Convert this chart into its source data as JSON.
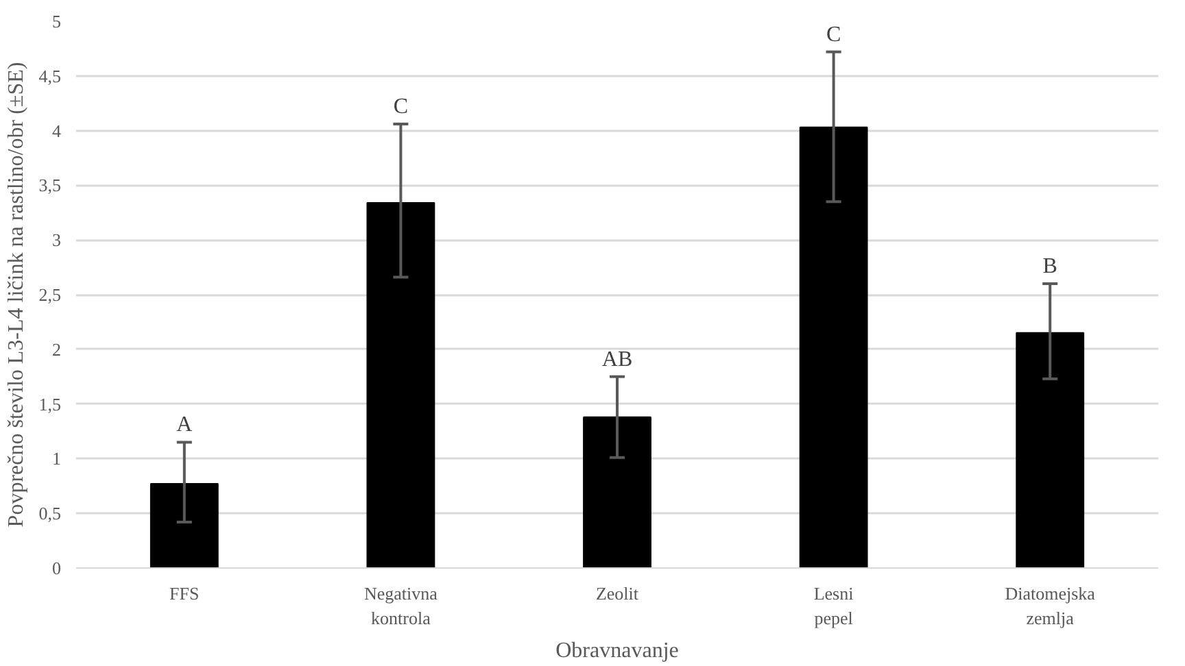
{
  "chart_data": {
    "type": "bar",
    "xlabel": "Obravnavanje",
    "ylabel": "Povprečno število L3-L4 ličink na rastlino/obr (±SE)",
    "categories": [
      "FFS",
      "Negativna kontrola",
      "Zeolit",
      "Lesni pepel",
      "Diatomejska zemlja"
    ],
    "values": [
      0.77,
      3.34,
      1.38,
      4.03,
      2.15
    ],
    "errors": [
      [
        0.42,
        1.15
      ],
      [
        2.66,
        4.06
      ],
      [
        1.01,
        1.75
      ],
      [
        3.35,
        4.72
      ],
      [
        1.73,
        2.6
      ]
    ],
    "color": "#000000",
    "ylim": [
      0,
      5
    ],
    "yticks": [
      0,
      {
        "value": 0.5,
        "label": "0,5"
      },
      1,
      {
        "value": 1.5,
        "label": "1,5"
      },
      2,
      {
        "value": 2.5,
        "label": "2,5"
      },
      3,
      {
        "value": 3.5,
        "label": "3,5"
      },
      4,
      {
        "value": 4.5,
        "label": "4,5"
      },
      5
    ],
    "grid": "y",
    "annotations": [
      {
        "text": "A",
        "x": "FFS",
        "y": 1.15
      },
      {
        "text": "C",
        "x": "Negativna kontrola",
        "y": 4.06
      },
      {
        "text": "AB",
        "x": "Zeolit",
        "y": 1.75
      },
      {
        "text": "C",
        "x": "Lesni pepel",
        "y": 4.72
      },
      {
        "text": "B",
        "x": "Diatomejska zemlja",
        "y": 2.6
      }
    ]
  }
}
